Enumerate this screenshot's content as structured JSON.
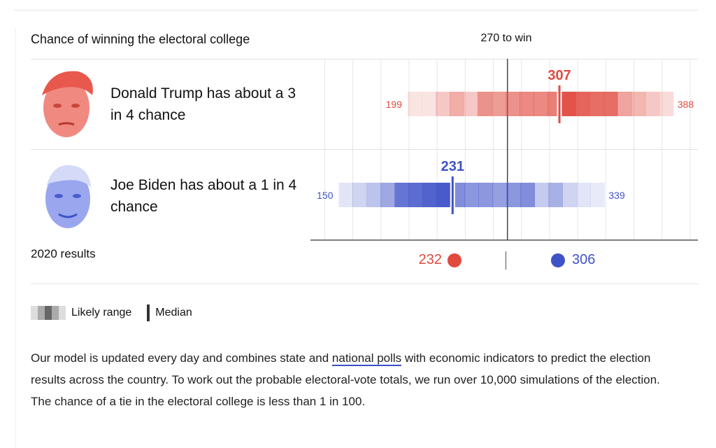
{
  "title": "Chance of winning the electoral college",
  "threshold_label": "270 to win",
  "candidates": [
    {
      "name": "Donald Trump has about a 3 in 4 chance",
      "color": "#e04a3f",
      "low": 199,
      "median": 307,
      "high": 388,
      "shade": [
        0.15,
        0.15,
        0.3,
        0.45,
        0.3,
        0.6,
        0.55,
        0.6,
        0.65,
        0.65,
        0.7,
        0.95,
        0.85,
        0.8,
        0.8,
        0.5,
        0.4,
        0.3,
        0.2
      ]
    },
    {
      "name": "Joe Biden has about a 1 in 4 chance",
      "color": "#3f52c8",
      "low": 150,
      "median": 231,
      "high": 339,
      "shade": [
        0.15,
        0.25,
        0.35,
        0.5,
        0.8,
        0.85,
        0.9,
        0.95,
        0.65,
        0.6,
        0.6,
        0.55,
        0.6,
        0.65,
        0.3,
        0.45,
        0.25,
        0.15,
        0.12
      ]
    }
  ],
  "results_label": "2020 results",
  "results": {
    "trump": "232",
    "biden": "306"
  },
  "legend": {
    "range": "Likely range",
    "median": "Median"
  },
  "paragraph": {
    "before": "Our model is updated every day and combines state and ",
    "link": "national polls",
    "after": " with economic indicators to predict the election results across the country. To work out the probable electoral-vote totals, we run over 10,000 simulations of the election. The chance of a tie in the electoral college is less than 1 in 100."
  },
  "chart_data": {
    "type": "range-bar",
    "threshold": 270,
    "xlim": [
      140,
      400
    ],
    "grid": true,
    "series": [
      {
        "name": "Donald Trump",
        "low": 199,
        "median": 307,
        "high": 388
      },
      {
        "name": "Joe Biden",
        "low": 150,
        "median": 231,
        "high": 339
      }
    ],
    "results_2020": {
      "Donald Trump": 232,
      "Joe Biden": 306
    }
  }
}
